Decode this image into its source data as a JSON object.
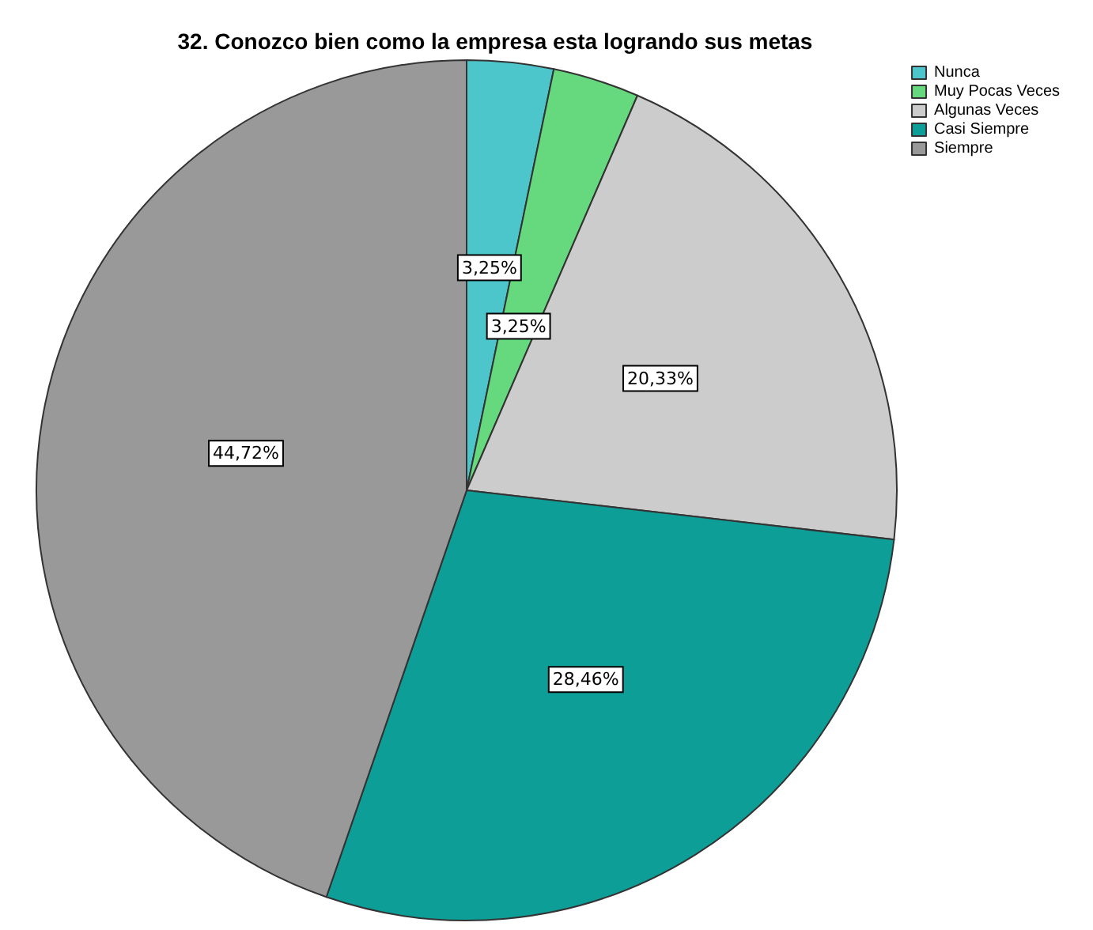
{
  "chart_data": {
    "type": "pie",
    "title": "32. Conozco bien como la empresa esta logrando sus metas",
    "categories": [
      "Nunca",
      "Muy Pocas Veces",
      "Algunas Veces",
      "Casi Siempre",
      "Siempre"
    ],
    "values": [
      3.25,
      3.25,
      20.33,
      28.46,
      44.72
    ],
    "value_labels": [
      "3,25%",
      "3,25%",
      "20,33%",
      "28,46%",
      "44,72%"
    ],
    "colors": [
      "#4dc6cb",
      "#66d97e",
      "#cccccc",
      "#0e9e98",
      "#999999"
    ],
    "legend": "top right"
  }
}
